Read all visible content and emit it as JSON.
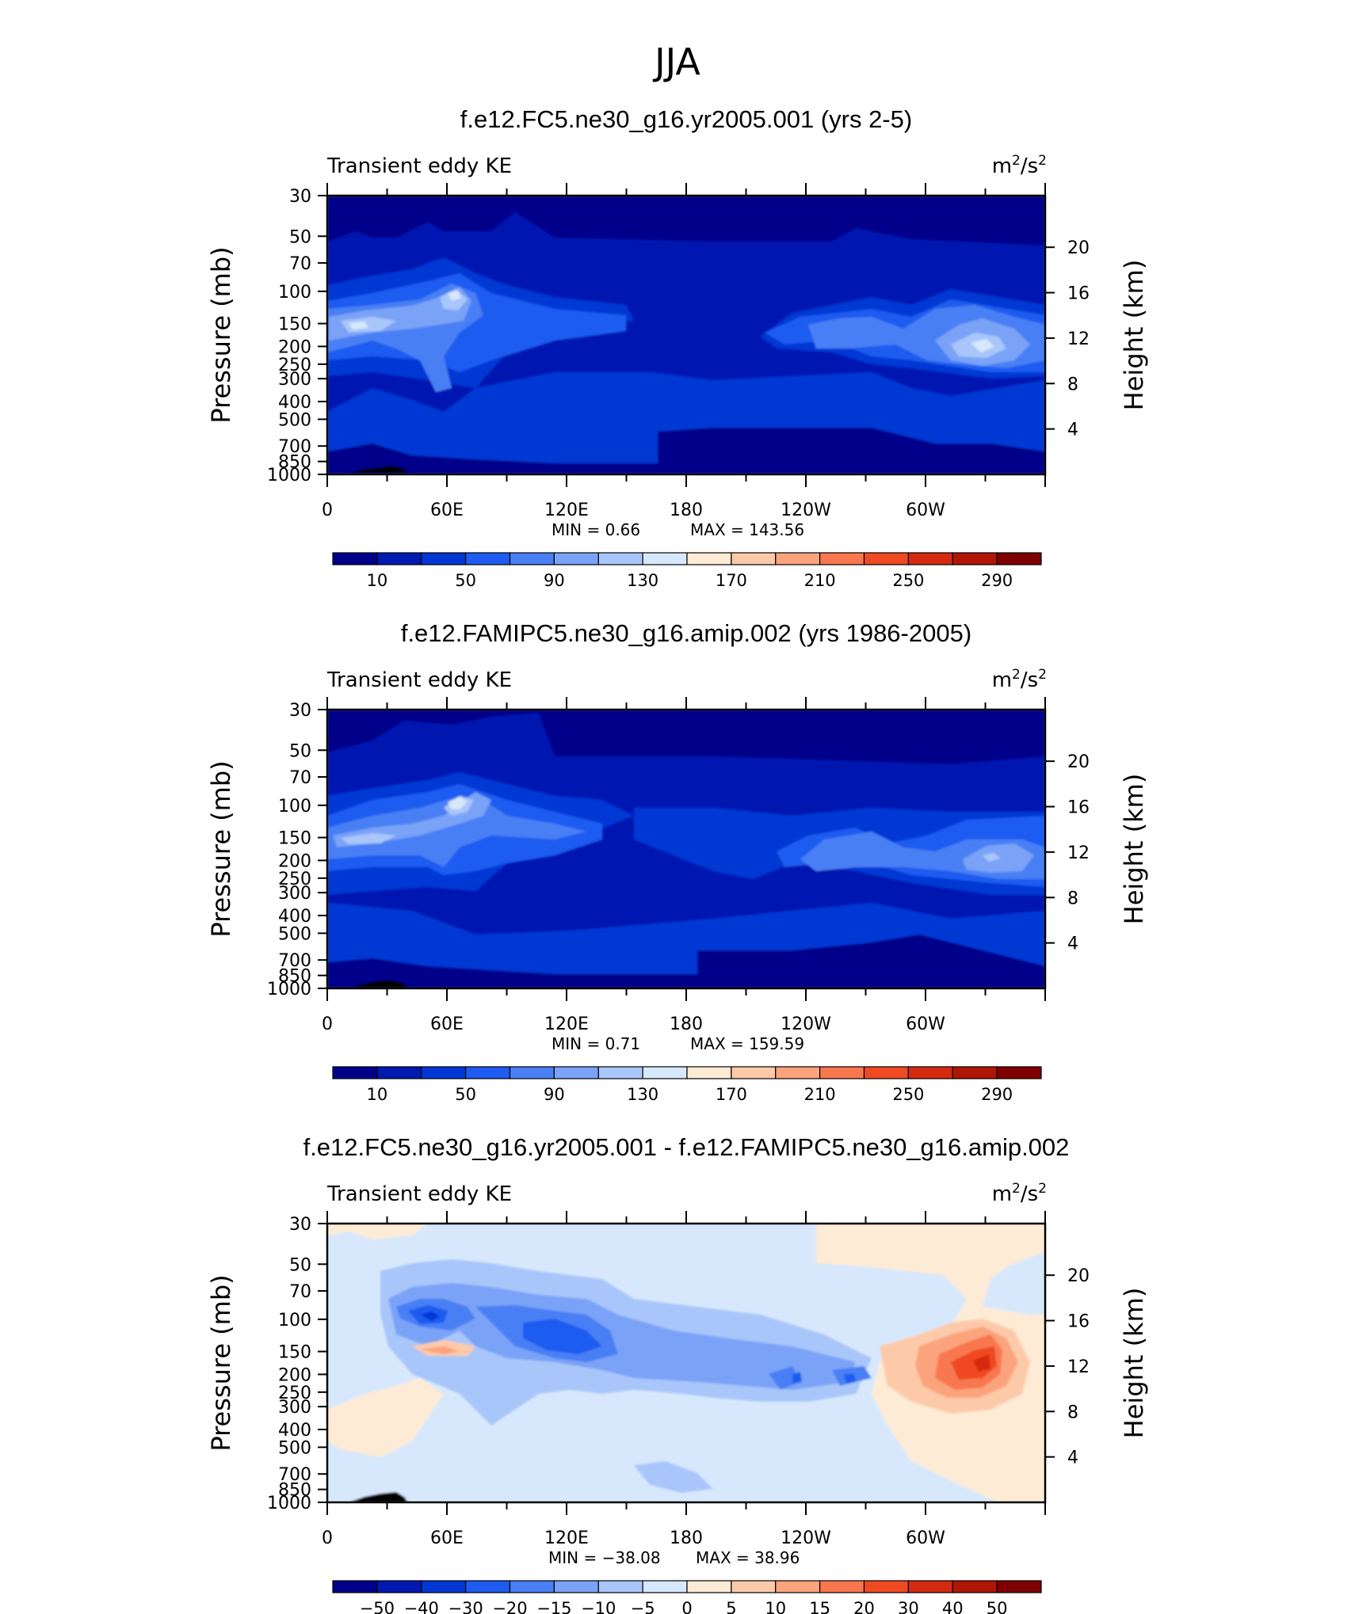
{
  "figure_title": "JJA",
  "chart_data": [
    {
      "type": "heatmap",
      "title": "f.e12.FC5.ne30_g16.yr2005.001 (yrs 2-5)",
      "subtitle_left": "Transient eddy KE",
      "units": "m²/s²",
      "ylabel": "Pressure (mb)",
      "ylabel_right": "Height (km)",
      "x_ticks": [
        "0",
        "60E",
        "120E",
        "180",
        "120W",
        "60W"
      ],
      "y_ticks": [
        "30",
        "50",
        "70",
        "100",
        "150",
        "200",
        "250",
        "300",
        "400",
        "500",
        "700",
        "850",
        "1000"
      ],
      "y_ticks_right": [
        "20",
        "16",
        "12",
        "8",
        "4"
      ],
      "ylim": [
        1000,
        30
      ],
      "min_label": "MIN =     0.66",
      "max_label": "MAX =  143.56",
      "min": 0.66,
      "max": 143.56,
      "levels": [
        10,
        30,
        50,
        70,
        90,
        110,
        130,
        150,
        170,
        190,
        210,
        230,
        250,
        270,
        290
      ],
      "colorbar_labels": [
        "10",
        "50",
        "90",
        "130",
        "170",
        "210",
        "250",
        "290"
      ],
      "colorbar_colors": [
        "#00008a",
        "#0019b0",
        "#0037d4",
        "#1f5bf0",
        "#4a7ff5",
        "#7aa3f7",
        "#a9c6fa",
        "#d7e8fd",
        "#fdebd6",
        "#fdcaa9",
        "#fba37c",
        "#f8774f",
        "#f04a22",
        "#d52a10",
        "#b01505",
        "#7f0000"
      ]
    },
    {
      "type": "heatmap",
      "title": "f.e12.FAMIPC5.ne30_g16.amip.002 (yrs 1986-2005)",
      "subtitle_left": "Transient eddy KE",
      "units": "m²/s²",
      "ylabel": "Pressure (mb)",
      "ylabel_right": "Height (km)",
      "x_ticks": [
        "0",
        "60E",
        "120E",
        "180",
        "120W",
        "60W"
      ],
      "y_ticks": [
        "30",
        "50",
        "70",
        "100",
        "150",
        "200",
        "250",
        "300",
        "400",
        "500",
        "700",
        "850",
        "1000"
      ],
      "y_ticks_right": [
        "20",
        "16",
        "12",
        "8",
        "4"
      ],
      "ylim": [
        1000,
        30
      ],
      "min_label": "MIN =     0.71",
      "max_label": "MAX =  159.59",
      "min": 0.71,
      "max": 159.59,
      "levels": [
        10,
        30,
        50,
        70,
        90,
        110,
        130,
        150,
        170,
        190,
        210,
        230,
        250,
        270,
        290
      ],
      "colorbar_labels": [
        "10",
        "50",
        "90",
        "130",
        "170",
        "210",
        "250",
        "290"
      ],
      "colorbar_colors": [
        "#00008a",
        "#0019b0",
        "#0037d4",
        "#1f5bf0",
        "#4a7ff5",
        "#7aa3f7",
        "#a9c6fa",
        "#d7e8fd",
        "#fdebd6",
        "#fdcaa9",
        "#fba37c",
        "#f8774f",
        "#f04a22",
        "#d52a10",
        "#b01505",
        "#7f0000"
      ]
    },
    {
      "type": "heatmap",
      "title": "f.e12.FC5.ne30_g16.yr2005.001 - f.e12.FAMIPC5.ne30_g16.amip.002",
      "subtitle_left": "Transient eddy KE",
      "units": "m²/s²",
      "ylabel": "Pressure (mb)",
      "ylabel_right": "Height (km)",
      "x_ticks": [
        "0",
        "60E",
        "120E",
        "180",
        "120W",
        "60W"
      ],
      "y_ticks": [
        "30",
        "50",
        "70",
        "100",
        "150",
        "200",
        "250",
        "300",
        "400",
        "500",
        "700",
        "850",
        "1000"
      ],
      "y_ticks_right": [
        "20",
        "16",
        "12",
        "8",
        "4"
      ],
      "ylim": [
        1000,
        30
      ],
      "min_label": "MIN =  −38.08",
      "max_label": "MAX =   38.96",
      "min": -38.08,
      "max": 38.96,
      "levels": [
        -50,
        -40,
        -30,
        -20,
        -15,
        -10,
        -5,
        0,
        5,
        10,
        15,
        20,
        30,
        40,
        50
      ],
      "colorbar_labels": [
        "−50",
        "−40",
        "−30",
        "−20",
        "−15",
        "−10",
        "−5",
        "0",
        "5",
        "10",
        "15",
        "20",
        "30",
        "40",
        "50"
      ],
      "colorbar_colors": [
        "#00008a",
        "#0019b0",
        "#0037d4",
        "#1f5bf0",
        "#4a7ff5",
        "#7aa3f7",
        "#a9c6fa",
        "#d7e8fd",
        "#fdebd6",
        "#fdcaa9",
        "#fba37c",
        "#f8774f",
        "#f04a22",
        "#d52a10",
        "#b01505",
        "#7f0000"
      ]
    }
  ]
}
